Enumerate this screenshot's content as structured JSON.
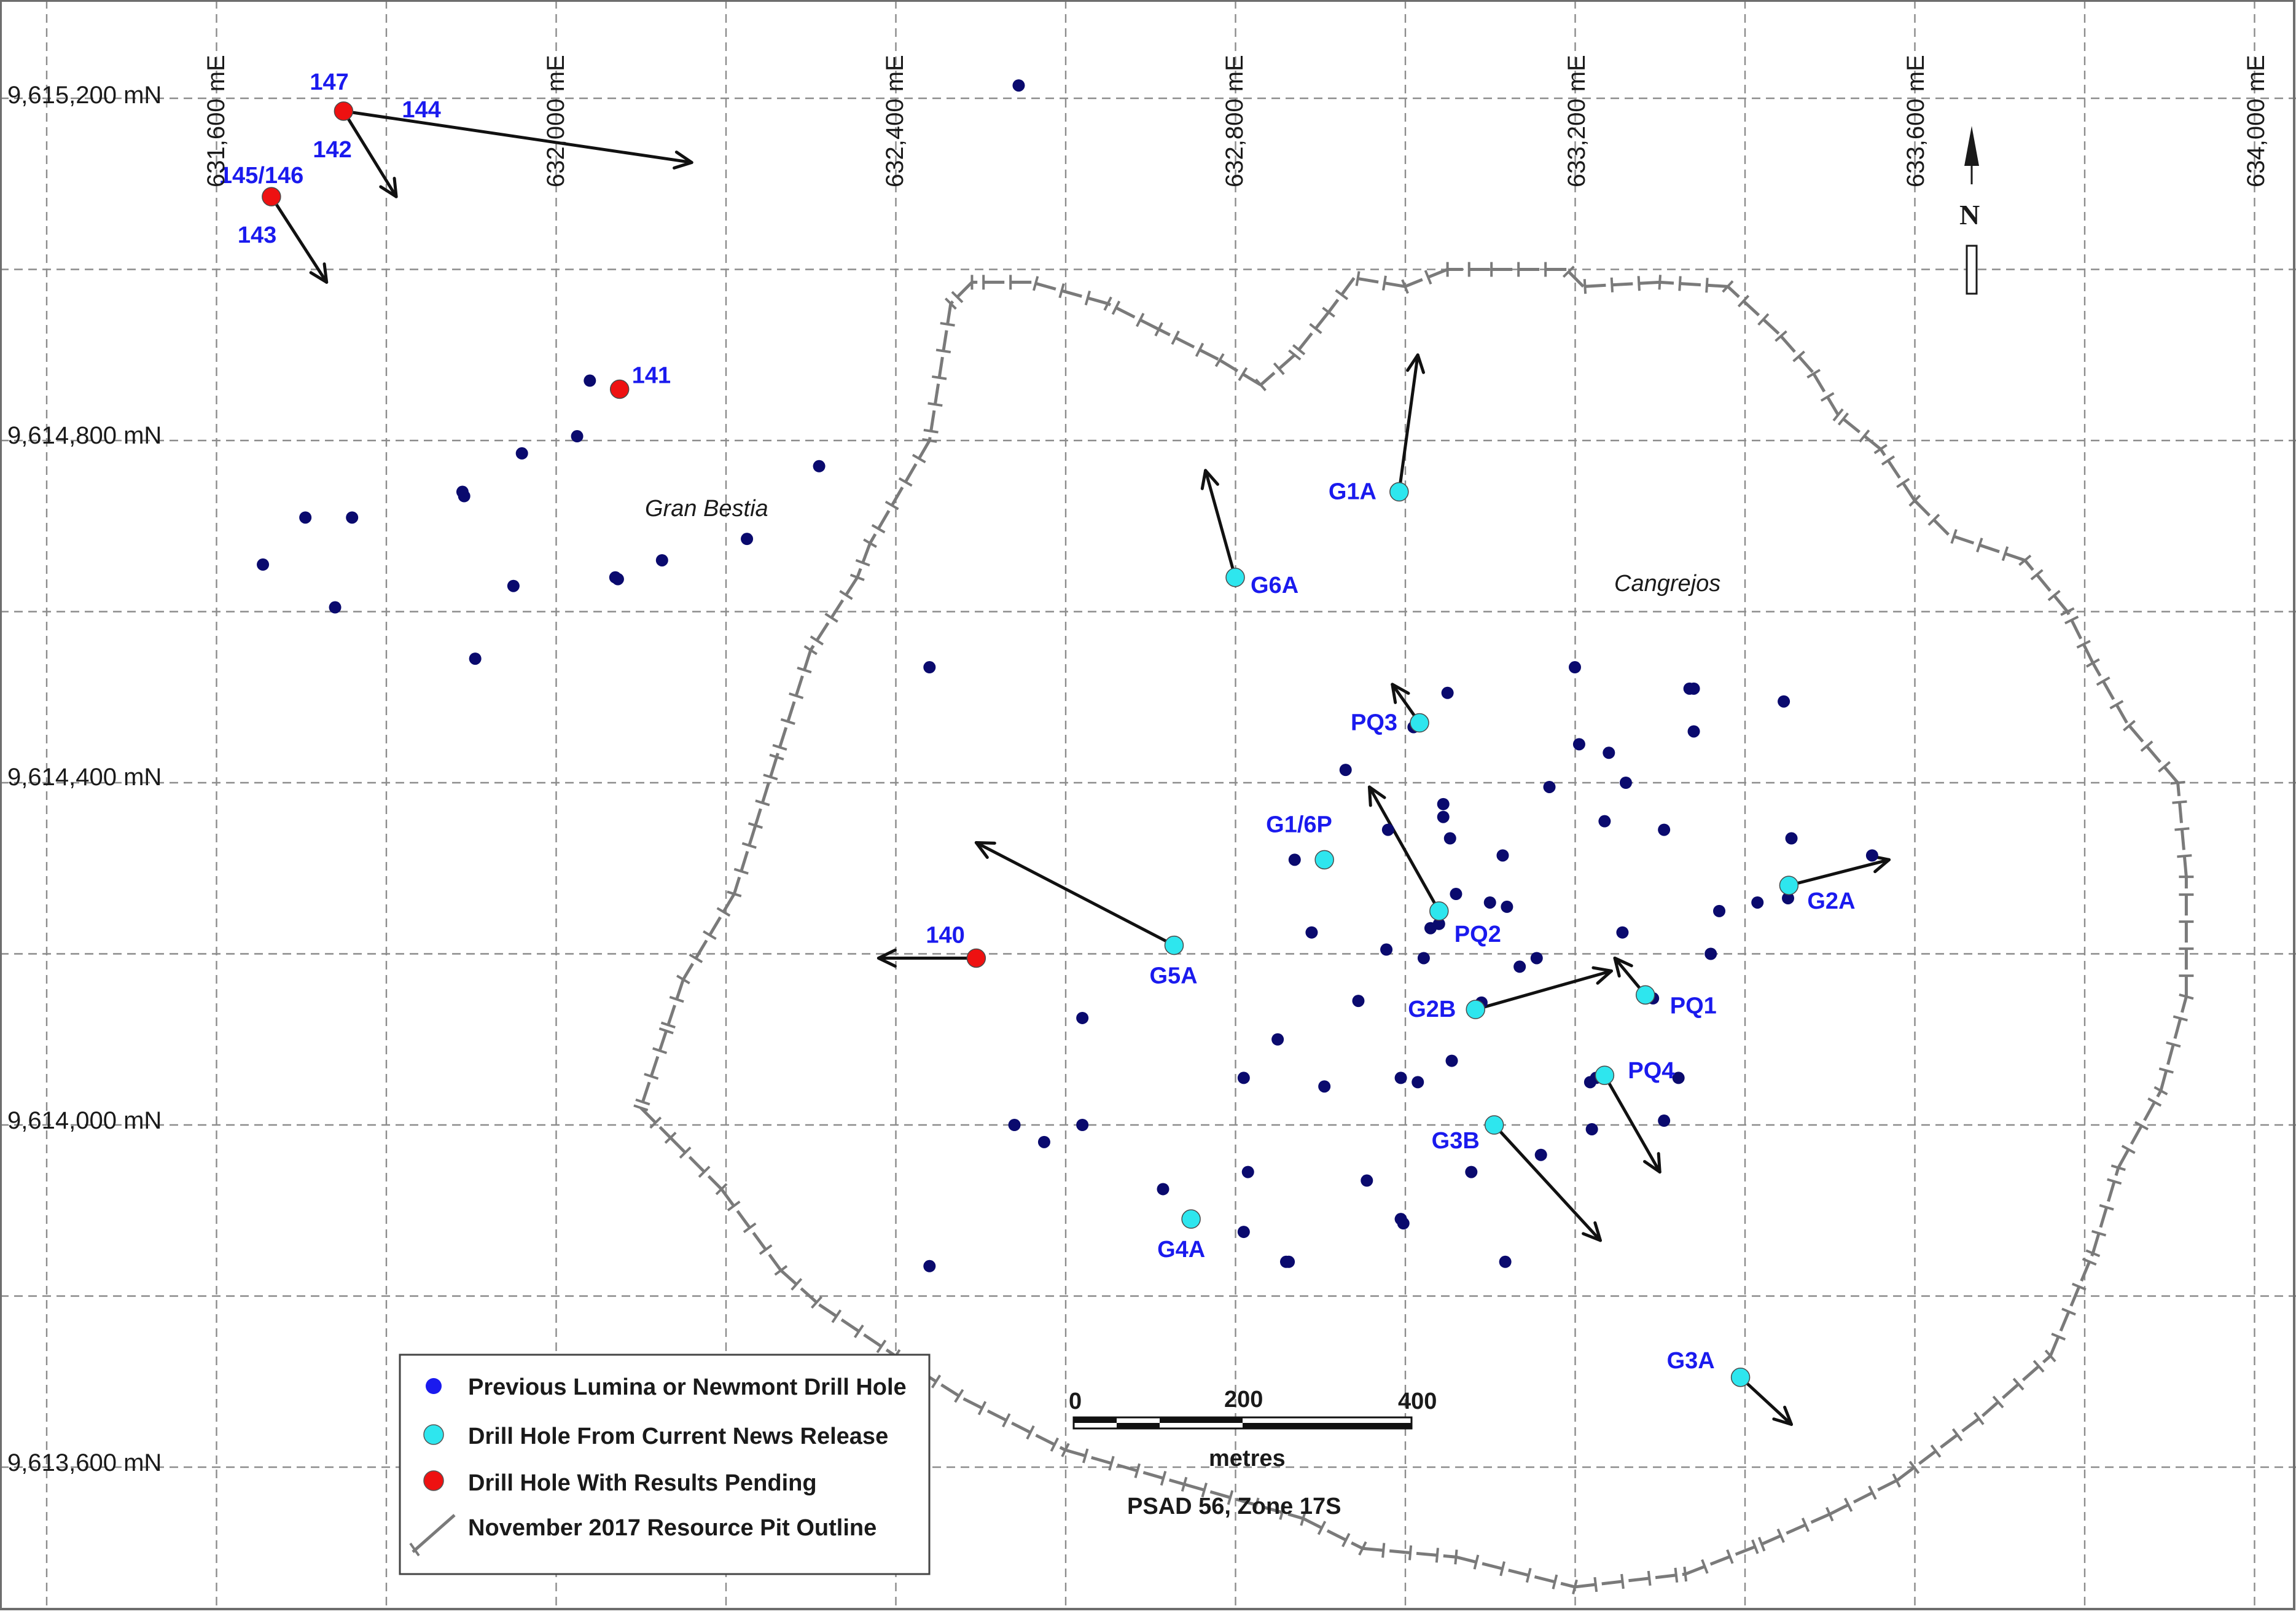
{
  "easting_labels": [
    "631,600 mE",
    "632,000 mE",
    "632,400 mE",
    "632,800 mE",
    "633,200 mE",
    "633,600 mE",
    "634,000 mE"
  ],
  "northing_labels": [
    "9,615,200 mN",
    "9,614,800 mN",
    "9,614,400 mN",
    "9,614,000 mN",
    "9,613,600 mN"
  ],
  "area_labels": {
    "gran_bestia": "Gran Bestia",
    "cangrejos": "Cangrejos"
  },
  "north_arrow": {
    "label": "N"
  },
  "colors": {
    "previous_hole": "#0a0a6e",
    "current_release_hole": "#2ee6ee",
    "pending_hole": "#ee1111",
    "pit_outline": "#7a7a7a",
    "hole_label": "#1a1aee",
    "grid": "#8c8c8c"
  },
  "legend": {
    "items": [
      {
        "key": "previous",
        "label": "Previous Lumina or Newmont Drill Hole"
      },
      {
        "key": "current",
        "label": "Drill Hole From Current News Release"
      },
      {
        "key": "pending",
        "label": "Drill Hole With Results Pending"
      },
      {
        "key": "pit",
        "label": "November 2017 Resource Pit Outline"
      }
    ]
  },
  "scale_bar": {
    "ticks": [
      "0",
      "200",
      "400"
    ],
    "unit": "metres",
    "datum": "PSAD 56, Zone 17S"
  },
  "pending_holes": [
    {
      "label": "147",
      "e": 631750,
      "n": 615185
    },
    {
      "label": "145/146",
      "e": 631665,
      "n": 615085
    },
    {
      "label": "141",
      "e": 632075,
      "n": 614860
    },
    {
      "label": "140",
      "e": 632495,
      "n": 614195
    }
  ],
  "pending_hole_extra_labels": [
    {
      "label": "144",
      "near": "147"
    },
    {
      "label": "142",
      "near": "147"
    },
    {
      "label": "143",
      "near": "145/146"
    }
  ],
  "current_release_holes": [
    {
      "label": "G1A",
      "e": 632993,
      "n": 614740
    },
    {
      "label": "G6A",
      "e": 632800,
      "n": 614640
    },
    {
      "label": "PQ3",
      "e": 633017,
      "n": 614470
    },
    {
      "label": "G1/6P",
      "e": 632905,
      "n": 614310
    },
    {
      "label": "PQ2",
      "e": 633040,
      "n": 614250
    },
    {
      "label": "G5A",
      "e": 632728,
      "n": 614210
    },
    {
      "label": "G2A",
      "e": 633452,
      "n": 614280
    },
    {
      "label": "G2B",
      "e": 633083,
      "n": 614135
    },
    {
      "label": "PQ1",
      "e": 633283,
      "n": 614152
    },
    {
      "label": "PQ4",
      "e": 633235,
      "n": 614058
    },
    {
      "label": "G3B",
      "e": 633105,
      "n": 614000
    },
    {
      "label": "G4A",
      "e": 632748,
      "n": 613890
    },
    {
      "label": "G3A",
      "e": 633395,
      "n": 613705
    }
  ],
  "previous_holes": [
    [
      632545,
      615215
    ],
    [
      632040,
      614870
    ],
    [
      632025,
      614805
    ],
    [
      631960,
      614785
    ],
    [
      632310,
      614770
    ],
    [
      631890,
      614740
    ],
    [
      631892,
      614735
    ],
    [
      631705,
      614710
    ],
    [
      631760,
      614710
    ],
    [
      632225,
      614685
    ],
    [
      632125,
      614660
    ],
    [
      631655,
      614655
    ],
    [
      632070,
      614640
    ],
    [
      632073,
      614638
    ],
    [
      631950,
      614630
    ],
    [
      631740,
      614605
    ],
    [
      631905,
      614545
    ],
    [
      632440,
      614535
    ],
    [
      633200,
      614535
    ],
    [
      633335,
      614510
    ],
    [
      633340,
      614510
    ],
    [
      633050,
      614505
    ],
    [
      633446,
      614495
    ],
    [
      633340,
      614460
    ],
    [
      633010,
      614465
    ],
    [
      633205,
      614445
    ],
    [
      633240,
      614435
    ],
    [
      633260,
      614400
    ],
    [
      632930,
      614415
    ],
    [
      633170,
      614395
    ],
    [
      633045,
      614375
    ],
    [
      633045,
      614360
    ],
    [
      632980,
      614345
    ],
    [
      633235,
      614355
    ],
    [
      633305,
      614345
    ],
    [
      633053,
      614335
    ],
    [
      633455,
      614335
    ],
    [
      633115,
      614315
    ],
    [
      632870,
      614310
    ],
    [
      633550,
      614315
    ],
    [
      633060,
      614270
    ],
    [
      633100,
      614260
    ],
    [
      633120,
      614255
    ],
    [
      633415,
      614260
    ],
    [
      633451,
      614265
    ],
    [
      633370,
      614250
    ],
    [
      633030,
      614230
    ],
    [
      633040,
      614235
    ],
    [
      632890,
      614225
    ],
    [
      633256,
      614225
    ],
    [
      632978,
      614205
    ],
    [
      633022,
      614195
    ],
    [
      633155,
      614195
    ],
    [
      633135,
      614185
    ],
    [
      633360,
      614200
    ],
    [
      633288,
      614150
    ],
    [
      633292,
      614148
    ],
    [
      632945,
      614145
    ],
    [
      633090,
      614143
    ],
    [
      632620,
      614125
    ],
    [
      632850,
      614100
    ],
    [
      633055,
      614075
    ],
    [
      632810,
      614055
    ],
    [
      632995,
      614055
    ],
    [
      633015,
      614050
    ],
    [
      632905,
      614045
    ],
    [
      633218,
      614050
    ],
    [
      633322,
      614055
    ],
    [
      633225,
      614055
    ],
    [
      632540,
      614000
    ],
    [
      632620,
      614000
    ],
    [
      633220,
      613995
    ],
    [
      633305,
      614005
    ],
    [
      632575,
      613980
    ],
    [
      633160,
      613965
    ],
    [
      632815,
      613945
    ],
    [
      633078,
      613945
    ],
    [
      632955,
      613935
    ],
    [
      632715,
      613925
    ],
    [
      632995,
      613890
    ],
    [
      632998,
      613885
    ],
    [
      632810,
      613875
    ],
    [
      632860,
      613840
    ],
    [
      632863,
      613840
    ],
    [
      633118,
      613840
    ],
    [
      632440,
      613835
    ]
  ],
  "drill_traces": [
    {
      "from": "147",
      "bearing_label": "144",
      "to_e": 632160,
      "to_n": 615125
    },
    {
      "from": "147",
      "bearing_label": "142",
      "to_e": 631812,
      "to_n": 615085
    },
    {
      "from": "145/146",
      "bearing_label": "143",
      "to_e": 631730,
      "to_n": 614985
    },
    {
      "from": "140",
      "to_e": 632380,
      "to_n": 614195
    },
    {
      "from": "G1A",
      "to_e": 633015,
      "to_n": 614900
    },
    {
      "from": "G6A",
      "to_e": 632765,
      "to_n": 614765
    },
    {
      "from": "PQ3",
      "to_e": 632985,
      "to_n": 614515
    },
    {
      "from": "PQ2",
      "to_e": 632958,
      "to_n": 614395
    },
    {
      "from": "G5A",
      "to_e": 632495,
      "to_n": 614330
    },
    {
      "from": "G2A",
      "to_e": 633570,
      "to_n": 614310
    },
    {
      "from": "G2B",
      "to_e": 633243,
      "to_n": 614180
    },
    {
      "from": "PQ1",
      "to_e": 633247,
      "to_n": 614195
    },
    {
      "from": "PQ4",
      "to_e": 633300,
      "to_n": 613945
    },
    {
      "from": "G3B",
      "to_e": 633230,
      "to_n": 613865
    },
    {
      "from": "G3A",
      "to_e": 633455,
      "to_n": 613650
    }
  ],
  "pit_outline_en": [
    [
      632490,
      614985
    ],
    [
      632465,
      614960
    ],
    [
      632440,
      614800
    ],
    [
      632370,
      614680
    ],
    [
      632355,
      614640
    ],
    [
      632300,
      614555
    ],
    [
      632260,
      614430
    ],
    [
      632235,
      614350
    ],
    [
      632210,
      614270
    ],
    [
      632150,
      614170
    ],
    [
      632130,
      614110
    ],
    [
      632100,
      614020
    ],
    [
      632135,
      613985
    ],
    [
      632195,
      613925
    ],
    [
      632265,
      613830
    ],
    [
      632310,
      613790
    ],
    [
      632400,
      613730
    ],
    [
      632480,
      613680
    ],
    [
      632600,
      613620
    ],
    [
      632740,
      613580
    ],
    [
      632880,
      613540
    ],
    [
      632950,
      613505
    ],
    [
      633060,
      613495
    ],
    [
      633200,
      613460
    ],
    [
      633330,
      613475
    ],
    [
      633420,
      613510
    ],
    [
      633500,
      613545
    ],
    [
      633580,
      613585
    ],
    [
      633680,
      613660
    ],
    [
      633760,
      613730
    ],
    [
      633810,
      613850
    ],
    [
      633840,
      613950
    ],
    [
      633890,
      614040
    ],
    [
      633920,
      614150
    ],
    [
      633920,
      614290
    ],
    [
      633910,
      614400
    ],
    [
      633850,
      614470
    ],
    [
      633810,
      614540
    ],
    [
      633780,
      614600
    ],
    [
      633730,
      614660
    ],
    [
      633640,
      614690
    ],
    [
      633600,
      614730
    ],
    [
      633560,
      614790
    ],
    [
      633510,
      614830
    ],
    [
      633480,
      614880
    ],
    [
      633440,
      614925
    ],
    [
      633380,
      614980
    ],
    [
      633300,
      614985
    ],
    [
      633210,
      614980
    ],
    [
      633190,
      615000
    ],
    [
      633100,
      615000
    ],
    [
      633050,
      615000
    ],
    [
      633000,
      614980
    ],
    [
      632940,
      614990
    ],
    [
      632910,
      614950
    ],
    [
      632870,
      614900
    ],
    [
      632830,
      614865
    ],
    [
      632780,
      614895
    ],
    [
      632710,
      614930
    ],
    [
      632650,
      614960
    ],
    [
      632560,
      614985
    ]
  ]
}
